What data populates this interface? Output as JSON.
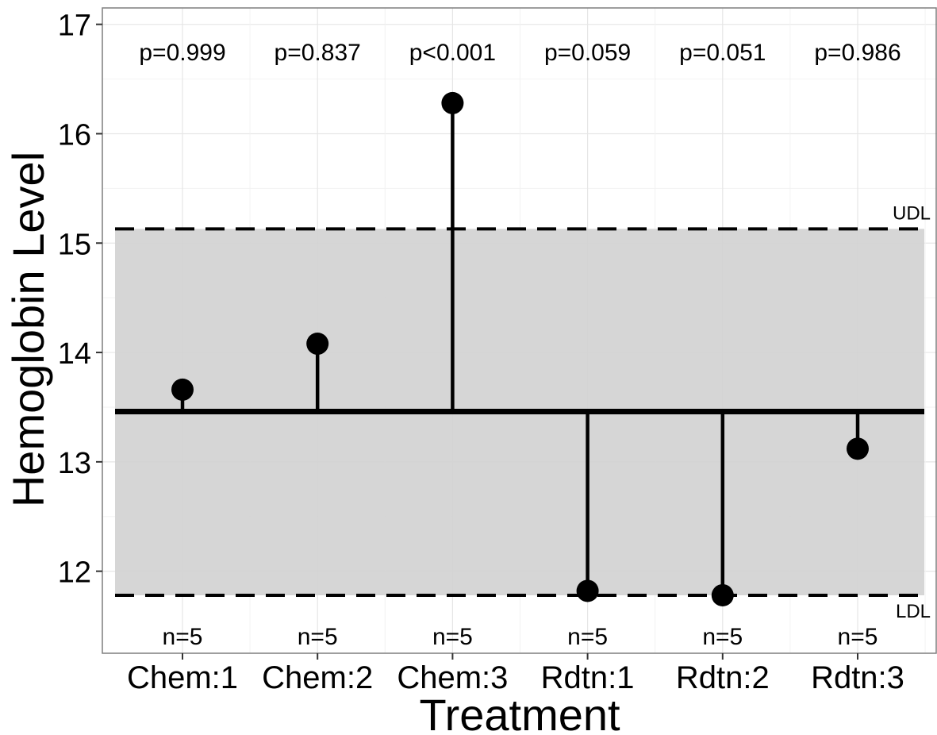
{
  "chart_data": {
    "type": "scatter",
    "xlabel": "Treatment",
    "ylabel": "Hemoglobin Level",
    "categories": [
      "Chem:1",
      "Chem:2",
      "Chem:3",
      "Rdtn:1",
      "Rdtn:2",
      "Rdtn:3"
    ],
    "values": [
      13.66,
      14.08,
      16.28,
      11.82,
      11.78,
      13.12
    ],
    "center_line": 13.46,
    "upper_limit": 15.13,
    "lower_limit": 11.78,
    "upper_limit_label": "UDL",
    "lower_limit_label": "LDL",
    "p_values": [
      "p=0.999",
      "p=0.837",
      "p<0.001",
      "p=0.059",
      "p=0.051",
      "p=0.986"
    ],
    "n_labels": [
      "n=5",
      "n=5",
      "n=5",
      "n=5",
      "n=5",
      "n=5"
    ],
    "yticks": [
      12,
      13,
      14,
      15,
      16,
      17
    ],
    "ylim": [
      11.25,
      17.15
    ],
    "grid": true,
    "colors": {
      "band": "#d3d3d3",
      "points": "#000000",
      "grid": "#e6e6e6"
    }
  }
}
